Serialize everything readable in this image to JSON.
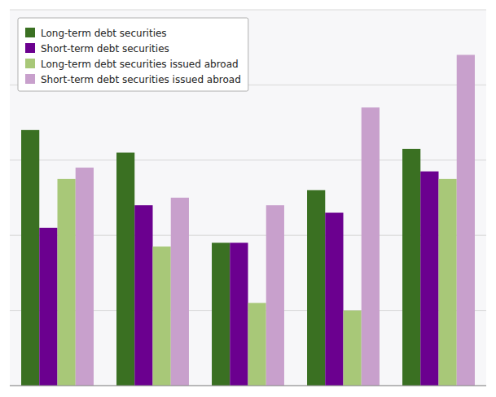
{
  "chart_data": {
    "type": "bar",
    "categories": [
      null,
      null,
      null,
      null,
      null
    ],
    "series": [
      {
        "name": "Long-term debt securities",
        "color": "#3a7022",
        "values": [
          68,
          62,
          38,
          52,
          63
        ]
      },
      {
        "name": "Short-term debt securities",
        "color": "#6b008f",
        "values": [
          42,
          48,
          38,
          46,
          57
        ]
      },
      {
        "name": "Long-term debt securities issued abroad",
        "color": "#a8c878",
        "values": [
          55,
          37,
          22,
          20,
          55
        ]
      },
      {
        "name": "Short-term debt securities issued abroad",
        "color": "#c8a0cc",
        "values": [
          58,
          50,
          48,
          74,
          88
        ]
      }
    ],
    "ylim": [
      0,
      100
    ],
    "yticks": [
      0,
      20,
      40,
      60,
      80,
      100
    ],
    "grid": true,
    "legend": "upper left",
    "tick_labels": false
  }
}
